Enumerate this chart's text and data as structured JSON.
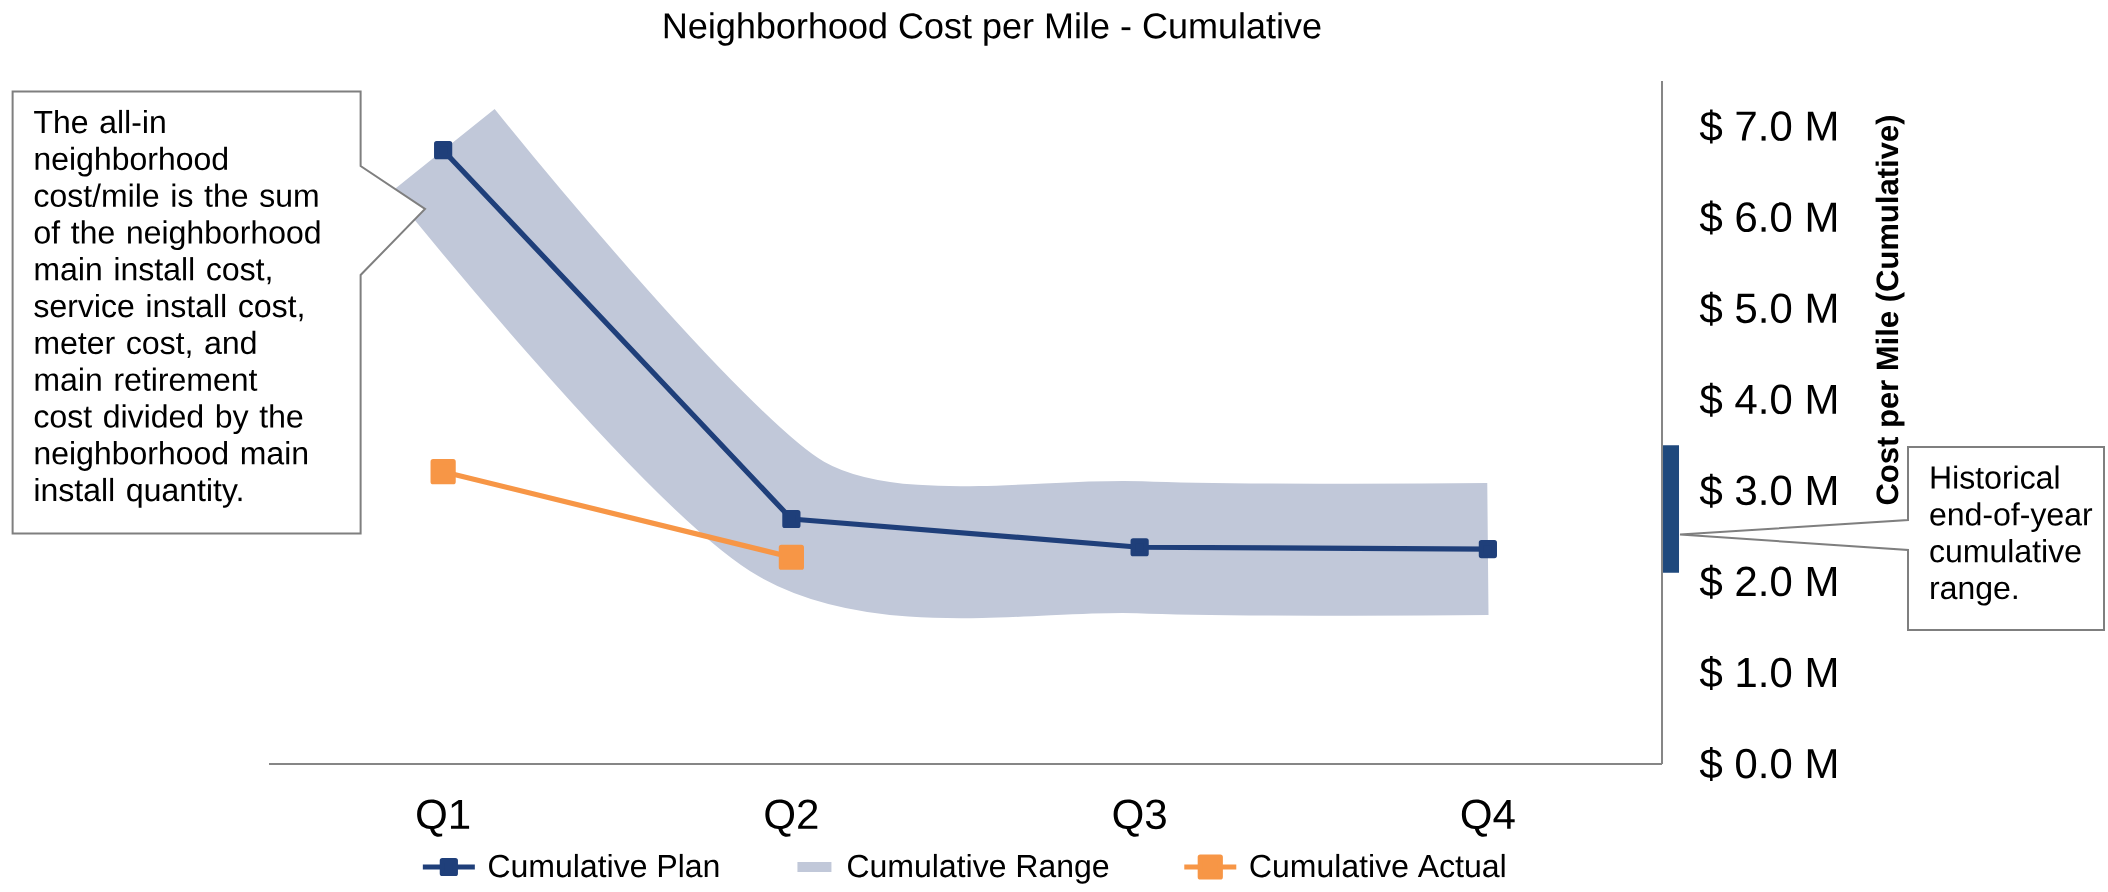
{
  "chart_data": [
    {
      "type": "line",
      "title": "Neighborhood Cost per Mile - Cumulative",
      "ylabel": "Cost per Mile (Cumulative)",
      "categories": [
        "Q1",
        "Q2",
        "Q3",
        "Q4"
      ],
      "series": [
        {
          "name": "Cumulative Plan",
          "color": "#1f3f7a",
          "marker": "square",
          "values": [
            6.74,
            2.69,
            2.38,
            2.36
          ]
        },
        {
          "name": "Cumulative Range",
          "color": "#c1c8d9",
          "marker": "none",
          "values": [
            6.74,
            2.69,
            2.38,
            2.36
          ]
        },
        {
          "name": "Cumulative Actual",
          "color": "#f79646",
          "marker": "square",
          "values": [
            3.21,
            2.27,
            null,
            null
          ]
        }
      ],
      "ylim": [
        0,
        7.5
      ],
      "yticks": [
        {
          "value": 0,
          "label": "$ 0.0 M"
        },
        {
          "value": 1,
          "label": "$ 1.0 M"
        },
        {
          "value": 2,
          "label": "$ 2.0 M"
        },
        {
          "value": 3,
          "label": "$ 3.0 M"
        },
        {
          "value": 4,
          "label": "$ 4.0 M"
        },
        {
          "value": 5,
          "label": "$ 5.0 M"
        },
        {
          "value": 6,
          "label": "$ 6.0 M"
        },
        {
          "value": 7,
          "label": "$ 7.0 M"
        }
      ],
      "annotations": [
        "The all-in neighborhood cost/mile is the sum of the neighborhood main install cost, service install cost, meter cost,  and main retirement cost divided by the neighborhood main install quantity."
      ],
      "legend": "bottom"
    },
    {
      "type": "bar",
      "categories": [
        null
      ],
      "base": [
        2.1
      ],
      "values": [
        1.4
      ],
      "color": "#1f497d",
      "ylim": [
        0,
        7.5
      ],
      "tick_labels": false,
      "annotations": [
        "Historical end-of-year cumulative range."
      ]
    }
  ]
}
